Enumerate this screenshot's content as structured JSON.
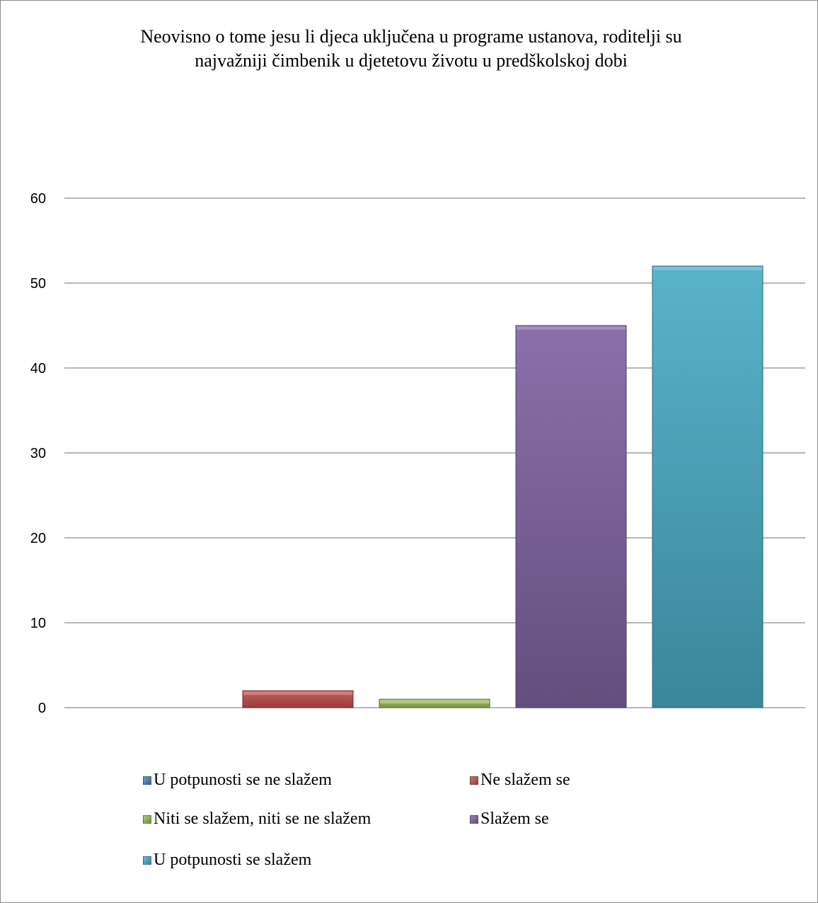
{
  "chart_data": {
    "type": "bar",
    "title": "Neovisno o tome jesu li djeca uključena u programe ustanova, roditelji su\nnajvažniji čimbenik u djetetovu životu u predškolskoj dobi",
    "xlabel": "",
    "ylabel": "",
    "ylim": [
      0,
      60
    ],
    "yticks": [
      "0",
      "10",
      "20",
      "30",
      "40",
      "50",
      "60"
    ],
    "grid": true,
    "legend_position": "bottom",
    "series": [
      {
        "name": "U potpunosti se ne slažem",
        "value": 0,
        "color": "#4f81bd"
      },
      {
        "name": "Ne slažem se",
        "value": 2,
        "color": "#c0504d"
      },
      {
        "name": "Niti se slažem, niti se ne slažem",
        "value": 1,
        "color": "#9bbb59"
      },
      {
        "name": "Slažem se",
        "value": 45,
        "color": "#8064a2"
      },
      {
        "name": "U potpunosti se slažem",
        "value": 52,
        "color": "#4bacc6"
      }
    ]
  }
}
